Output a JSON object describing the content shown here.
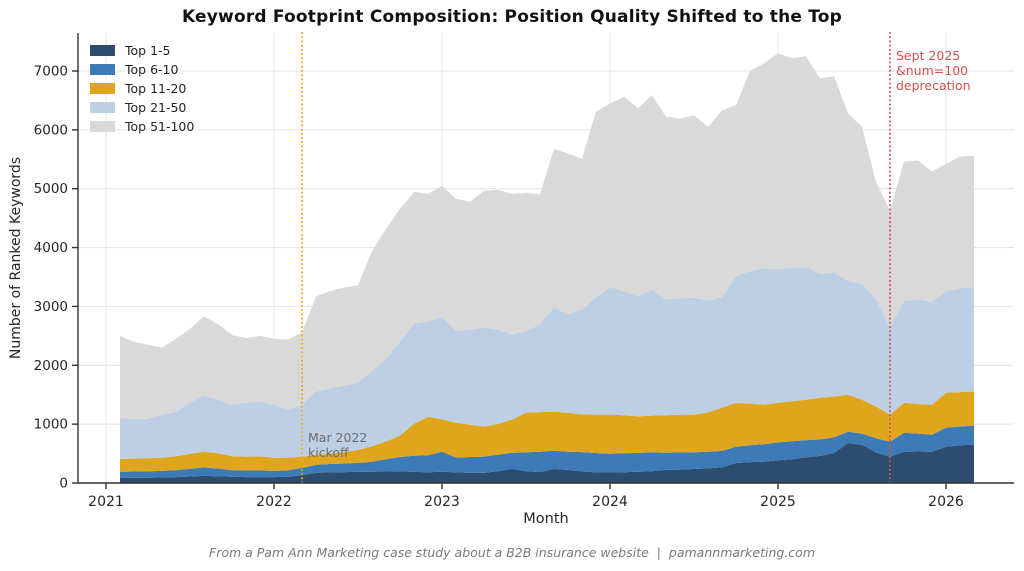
{
  "title": "Keyword Footprint Composition: Position Quality Shifted to the Top",
  "footer": "From a Pam Ann Marketing case study about a B2B insurance website  |  pamannmarketing.com",
  "chart_data": {
    "type": "area",
    "stacked": true,
    "title": "Keyword Footprint Composition: Position Quality Shifted to the Top",
    "xlabel": "Month",
    "ylabel": "Number of Ranked Keywords",
    "ylim": [
      0,
      7600
    ],
    "grid": true,
    "legend_position": "upper left",
    "y_ticks": [
      0,
      1000,
      2000,
      3000,
      4000,
      5000,
      6000,
      7000
    ],
    "x_ticks": [
      "2021",
      "2022",
      "2023",
      "2024",
      "2025",
      "2026"
    ],
    "months": [
      "2021-02",
      "2021-03",
      "2021-04",
      "2021-05",
      "2021-06",
      "2021-07",
      "2021-08",
      "2021-09",
      "2021-10",
      "2021-11",
      "2021-12",
      "2022-01",
      "2022-02",
      "2022-03",
      "2022-04",
      "2022-05",
      "2022-06",
      "2022-07",
      "2022-08",
      "2022-09",
      "2022-10",
      "2022-11",
      "2022-12",
      "2023-01",
      "2023-02",
      "2023-03",
      "2023-04",
      "2023-05",
      "2023-06",
      "2023-07",
      "2023-08",
      "2023-09",
      "2023-10",
      "2023-11",
      "2023-12",
      "2024-01",
      "2024-02",
      "2024-03",
      "2024-04",
      "2024-05",
      "2024-06",
      "2024-07",
      "2024-08",
      "2024-09",
      "2024-10",
      "2024-11",
      "2024-12",
      "2025-01",
      "2025-02",
      "2025-03",
      "2025-04",
      "2025-05",
      "2025-06",
      "2025-07",
      "2025-08",
      "2025-09",
      "2025-10",
      "2025-11",
      "2025-12",
      "2026-01",
      "2026-02",
      "2026-03"
    ],
    "series": [
      {
        "name": "Top 1-5",
        "color": "#2e4d6e",
        "values": [
          85,
          90,
          90,
          95,
          100,
          110,
          120,
          115,
          105,
          100,
          100,
          100,
          105,
          135,
          175,
          180,
          185,
          188,
          192,
          196,
          200,
          188,
          182,
          192,
          182,
          172,
          172,
          202,
          240,
          202,
          185,
          238,
          222,
          195,
          180,
          178,
          182,
          192,
          200,
          222,
          228,
          238,
          248,
          268,
          340,
          355,
          362,
          385,
          405,
          435,
          460,
          510,
          680,
          650,
          520,
          445,
          530,
          535,
          530,
          615,
          640,
          650
        ]
      },
      {
        "name": "Top 6-10",
        "color": "#3d7ab8",
        "values": [
          105,
          105,
          110,
          110,
          120,
          130,
          145,
          130,
          115,
          112,
          114,
          106,
          111,
          121,
          133,
          142,
          147,
          154,
          170,
          206,
          242,
          274,
          290,
          340,
          250,
          270,
          276,
          280,
          272,
          320,
          347,
          310,
          310,
          330,
          330,
          320,
          323,
          320,
          320,
          293,
          292,
          284,
          282,
          277,
          275,
          285,
          298,
          305,
          305,
          290,
          280,
          265,
          190,
          190,
          240,
          255,
          325,
          305,
          290,
          325,
          320,
          325
        ]
      },
      {
        "name": "Top 11-20",
        "color": "#dfa51d",
        "values": [
          220,
          220,
          220,
          225,
          235,
          255,
          265,
          260,
          235,
          236,
          238,
          222,
          216,
          192,
          170,
          178,
          190,
          220,
          263,
          303,
          363,
          543,
          653,
          548,
          593,
          548,
          510,
          520,
          566,
          670,
          673,
          664,
          663,
          640,
          650,
          664,
          645,
          620,
          625,
          635,
          638,
          640,
          670,
          735,
          750,
          710,
          670,
          675,
          680,
          690,
          710,
          695,
          630,
          575,
          540,
          460,
          510,
          500,
          510,
          595,
          585,
          580
        ]
      },
      {
        "name": "Top 21-50",
        "color": "#bdcfe4",
        "values": [
          700,
          665,
          670,
          730,
          755,
          870,
          955,
          910,
          875,
          917,
          933,
          902,
          813,
          882,
          1077,
          1110,
          1133,
          1143,
          1280,
          1400,
          1600,
          1700,
          1625,
          1735,
          1555,
          1615,
          1687,
          1603,
          1447,
          1388,
          1495,
          1773,
          1670,
          1785,
          1995,
          2163,
          2110,
          2043,
          2145,
          1970,
          1982,
          1988,
          1900,
          1875,
          2150,
          2250,
          2320,
          2270,
          2265,
          2255,
          2100,
          2110,
          1930,
          1965,
          1820,
          1485,
          1725,
          1780,
          1740,
          1725,
          1765,
          1770
        ]
      },
      {
        "name": "Top 51-100",
        "color": "#d9d9d9",
        "values": [
          1390,
          1320,
          1260,
          1140,
          1240,
          1255,
          1345,
          1285,
          1190,
          1095,
          1115,
          1120,
          1195,
          1230,
          1615,
          1650,
          1665,
          1655,
          2035,
          2215,
          2255,
          2245,
          2160,
          2235,
          2250,
          2175,
          2320,
          2375,
          2385,
          2350,
          2205,
          2695,
          2735,
          2560,
          3155,
          3125,
          3300,
          3195,
          3300,
          3105,
          3050,
          3100,
          2950,
          3175,
          2905,
          3400,
          3480,
          3665,
          3560,
          3580,
          3325,
          3330,
          2850,
          2670,
          2000,
          1985,
          2370,
          2360,
          2220,
          2165,
          2235,
          2235
        ]
      }
    ],
    "annotations": [
      {
        "label": "Mar 2022\nkickoff",
        "month": "2022-03",
        "line_color": "#eca81f",
        "text_color": "#6e6e6e"
      },
      {
        "label": "Sept 2025\n&num=100\ndeprecation",
        "month": "2025-09",
        "line_color": "#d4504b",
        "text_color": "#d4504b"
      }
    ]
  }
}
